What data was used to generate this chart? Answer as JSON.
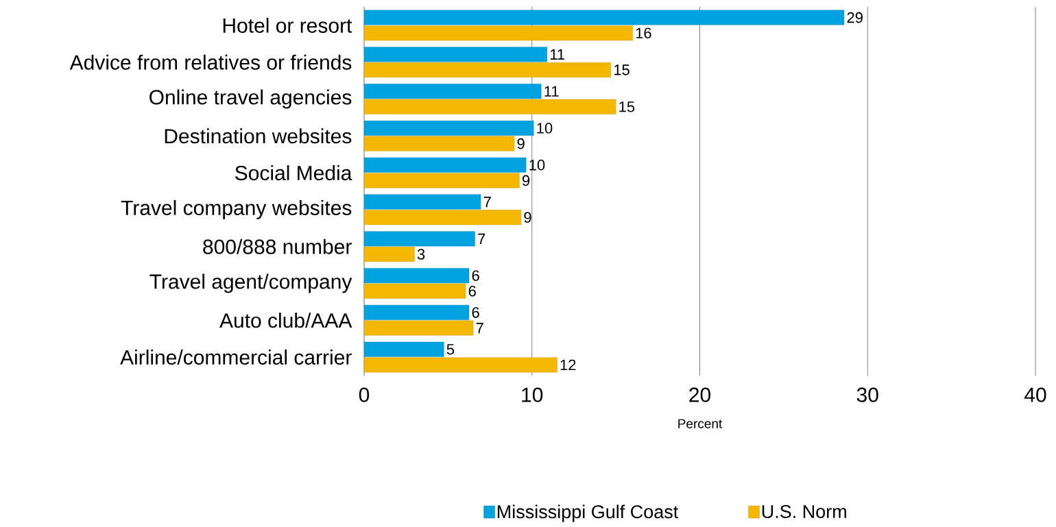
{
  "chart_data": {
    "type": "bar",
    "orientation": "horizontal",
    "xlabel": "Percent",
    "categories": [
      "Hotel or resort",
      "Advice from relatives or friends",
      "Online travel agencies",
      "Destination websites",
      "Social Media",
      "Travel company websites",
      "800/888 number",
      "Travel agent/company",
      "Auto club/AAA",
      "Airline/commercial carrier"
    ],
    "series": [
      {
        "name": "Mississippi Gulf Coast",
        "color": "#00a2e0",
        "values": [
          28.6,
          10.9,
          10.55,
          10.1,
          9.65,
          6.95,
          6.6,
          6.25,
          6.25,
          4.75
        ],
        "value_labels": [
          "29",
          "11",
          "11",
          "10",
          "10",
          "7",
          "7",
          "6",
          "6",
          "5"
        ]
      },
      {
        "name": "U.S. Norm",
        "color": "#f5b800",
        "values": [
          16.0,
          14.7,
          15.0,
          8.95,
          9.25,
          9.35,
          3.0,
          6.05,
          6.5,
          11.5
        ],
        "value_labels": [
          "16",
          "15",
          "15",
          "9",
          "9",
          "9",
          "3",
          "6",
          "7",
          "12"
        ]
      }
    ],
    "xlim": [
      0,
      40
    ],
    "xticks": [
      0,
      10,
      20,
      30,
      40
    ],
    "grid": "x",
    "legend": "bottom"
  }
}
